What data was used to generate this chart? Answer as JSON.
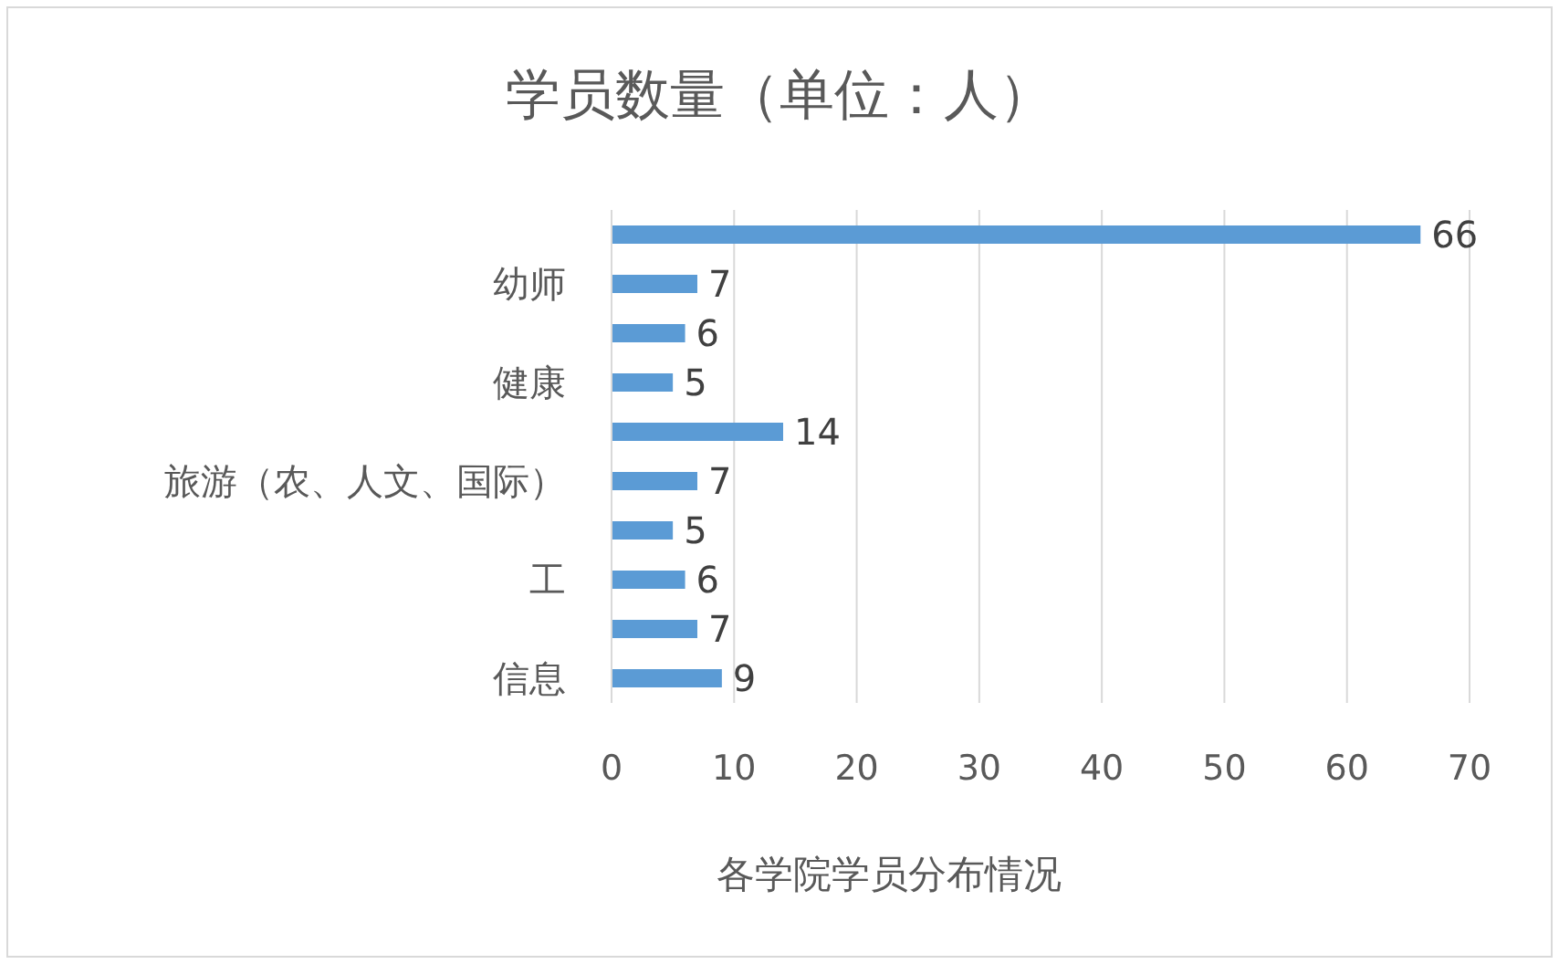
{
  "chart_data": {
    "type": "bar",
    "orientation": "horizontal",
    "title": "学员数量（单位：人）",
    "xlabel": "各学院学员分布情况",
    "categories": [
      null,
      "幼师",
      null,
      "健康",
      null,
      "旅游（农、人文、国际）",
      null,
      "工",
      null,
      "信息"
    ],
    "values": [
      66,
      7,
      6,
      5,
      14,
      7,
      5,
      6,
      7,
      9
    ],
    "color": "#5b9bd5",
    "xlim": [
      0,
      70
    ],
    "xticks": [
      0,
      10,
      20,
      30,
      40,
      50,
      60,
      70
    ],
    "grid": "x",
    "data_labels": true
  }
}
